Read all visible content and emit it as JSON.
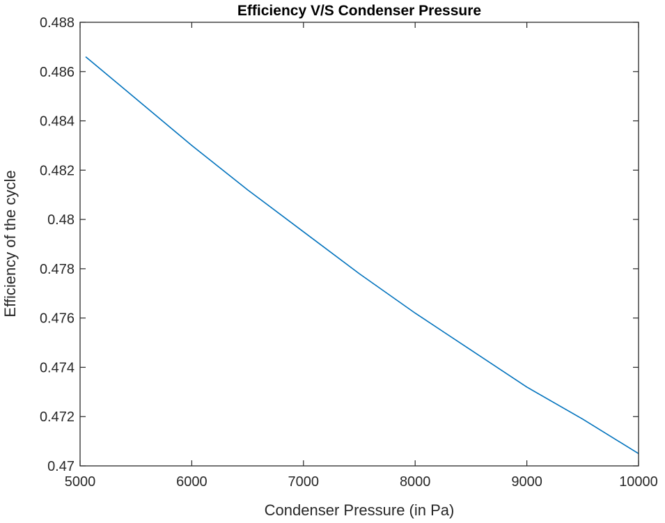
{
  "chart_data": {
    "type": "line",
    "title": "Efficiency V/S Condenser Pressure",
    "xlabel": "Condenser Pressure (in Pa)",
    "ylabel": "Efficiency of the cycle",
    "xlim": [
      5000,
      10000
    ],
    "ylim": [
      0.47,
      0.488
    ],
    "xticks": [
      5000,
      6000,
      7000,
      8000,
      9000,
      10000
    ],
    "xtick_labels": [
      "5000",
      "6000",
      "7000",
      "8000",
      "9000",
      "10000"
    ],
    "yticks": [
      0.47,
      0.472,
      0.474,
      0.476,
      0.478,
      0.48,
      0.482,
      0.484,
      0.486,
      0.488
    ],
    "ytick_labels": [
      "0.47",
      "0.472",
      "0.474",
      "0.476",
      "0.478",
      "0.48",
      "0.482",
      "0.484",
      "0.486",
      "0.488"
    ],
    "grid": false,
    "colors": {
      "line": "#0072bd",
      "axes": "#262626"
    },
    "series": [
      {
        "x": [
          5050,
          5500,
          6000,
          6500,
          7000,
          7500,
          8000,
          8500,
          9000,
          9500,
          10000
        ],
        "y": [
          0.4866,
          0.4849,
          0.483,
          0.4812,
          0.4795,
          0.4778,
          0.4762,
          0.4747,
          0.4732,
          0.4719,
          0.4705
        ]
      }
    ]
  }
}
